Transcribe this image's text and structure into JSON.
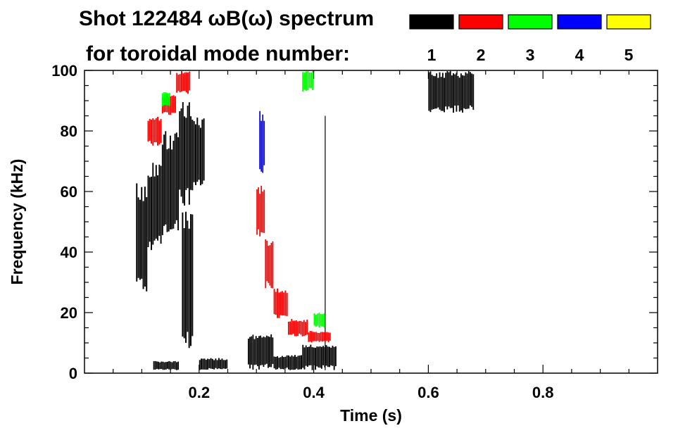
{
  "chart_data": {
    "type": "heatmap",
    "title_line1": "Shot 122484 ωB(ω) spectrum",
    "title_line2": "for toroidal mode number:",
    "xlabel": "Time (s)",
    "ylabel": "Frequency (kHz)",
    "xlim": [
      0.0,
      1.0
    ],
    "ylim": [
      0,
      100
    ],
    "x_ticks": [
      0.2,
      0.4,
      0.6,
      0.8
    ],
    "x_tick_labels": [
      "0.2",
      "0.4",
      "0.6",
      "0.8"
    ],
    "y_ticks": [
      0,
      20,
      40,
      60,
      80,
      100
    ],
    "y_tick_labels": [
      "0",
      "20",
      "40",
      "60",
      "80",
      "100"
    ],
    "legend": [
      {
        "label": "1",
        "color": "#000000"
      },
      {
        "label": "2",
        "color": "#ff0000"
      },
      {
        "label": "3",
        "color": "#00ff00"
      },
      {
        "label": "4",
        "color": "#0000ff"
      },
      {
        "label": "5",
        "color": "#ffff00"
      }
    ],
    "legend_position": "top-right",
    "grid": false,
    "features": [
      {
        "mode": 1,
        "kind": "band",
        "t": [
          0.09,
          0.11
        ],
        "f": [
          27,
          63
        ]
      },
      {
        "mode": 1,
        "kind": "band",
        "t": [
          0.11,
          0.135
        ],
        "f": [
          40,
          70
        ]
      },
      {
        "mode": 1,
        "kind": "band",
        "t": [
          0.135,
          0.165
        ],
        "f": [
          45,
          80
        ]
      },
      {
        "mode": 1,
        "kind": "band",
        "t": [
          0.165,
          0.19
        ],
        "f": [
          55,
          90
        ]
      },
      {
        "mode": 1,
        "kind": "band",
        "t": [
          0.19,
          0.21
        ],
        "f": [
          60,
          85
        ]
      },
      {
        "mode": 1,
        "kind": "band",
        "t": [
          0.17,
          0.19
        ],
        "f": [
          8,
          55
        ]
      },
      {
        "mode": 1,
        "kind": "band",
        "t": [
          0.12,
          0.165
        ],
        "f": [
          1,
          4
        ]
      },
      {
        "mode": 1,
        "kind": "band",
        "t": [
          0.2,
          0.25
        ],
        "f": [
          1,
          5
        ]
      },
      {
        "mode": 1,
        "kind": "band",
        "t": [
          0.285,
          0.33
        ],
        "f": [
          1,
          13
        ]
      },
      {
        "mode": 1,
        "kind": "band",
        "t": [
          0.33,
          0.38
        ],
        "f": [
          1,
          6
        ]
      },
      {
        "mode": 1,
        "kind": "band",
        "t": [
          0.38,
          0.44
        ],
        "f": [
          1,
          10
        ]
      },
      {
        "mode": 1,
        "kind": "band",
        "t": [
          0.6,
          0.68
        ],
        "f": [
          86,
          100
        ]
      },
      {
        "mode": 1,
        "kind": "line",
        "t": [
          0.42,
          0.42
        ],
        "f": [
          1,
          85
        ]
      },
      {
        "mode": 2,
        "kind": "band",
        "t": [
          0.11,
          0.135
        ],
        "f": [
          75,
          85
        ]
      },
      {
        "mode": 2,
        "kind": "band",
        "t": [
          0.135,
          0.16
        ],
        "f": [
          85,
          92
        ]
      },
      {
        "mode": 2,
        "kind": "band",
        "t": [
          0.16,
          0.185
        ],
        "f": [
          92,
          100
        ]
      },
      {
        "mode": 2,
        "kind": "band",
        "t": [
          0.3,
          0.315
        ],
        "f": [
          45,
          62
        ]
      },
      {
        "mode": 2,
        "kind": "band",
        "t": [
          0.315,
          0.33
        ],
        "f": [
          28,
          45
        ]
      },
      {
        "mode": 2,
        "kind": "band",
        "t": [
          0.33,
          0.355
        ],
        "f": [
          18,
          28
        ]
      },
      {
        "mode": 2,
        "kind": "band",
        "t": [
          0.355,
          0.39
        ],
        "f": [
          12,
          18
        ]
      },
      {
        "mode": 2,
        "kind": "band",
        "t": [
          0.39,
          0.43
        ],
        "f": [
          10,
          14
        ]
      },
      {
        "mode": 3,
        "kind": "band",
        "t": [
          0.135,
          0.15
        ],
        "f": [
          88,
          93
        ]
      },
      {
        "mode": 3,
        "kind": "band",
        "t": [
          0.38,
          0.4
        ],
        "f": [
          93,
          100
        ]
      },
      {
        "mode": 3,
        "kind": "band",
        "t": [
          0.4,
          0.42
        ],
        "f": [
          15,
          20
        ]
      },
      {
        "mode": 4,
        "kind": "band",
        "t": [
          0.305,
          0.315
        ],
        "f": [
          65,
          87
        ]
      }
    ]
  }
}
